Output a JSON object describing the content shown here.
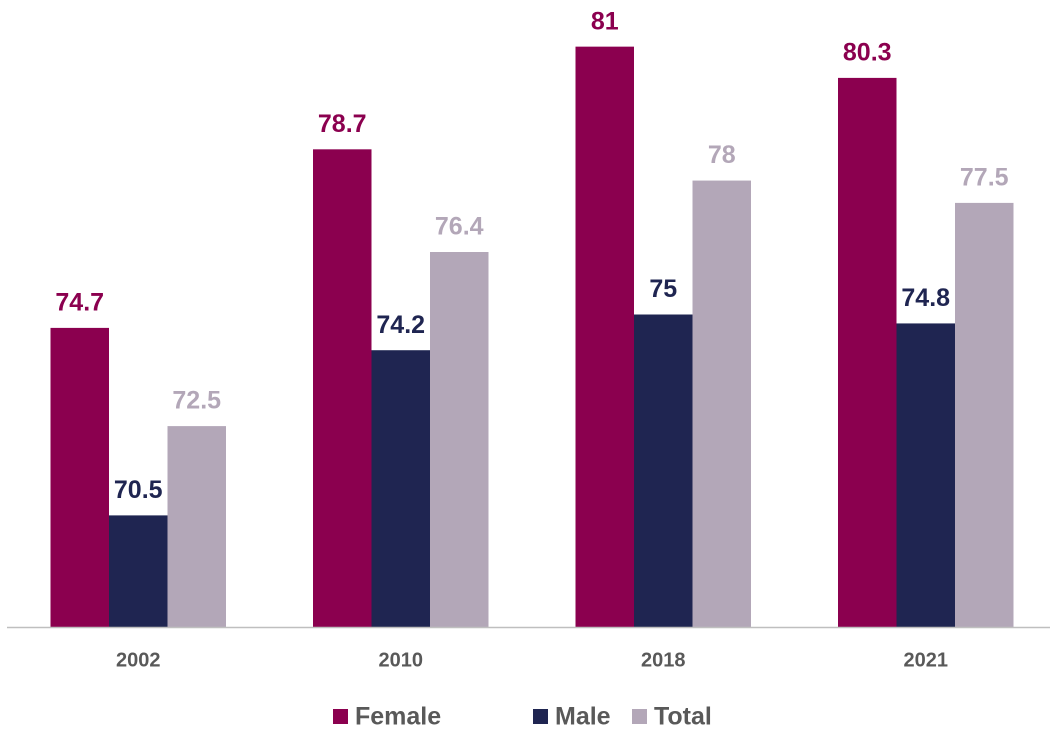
{
  "chart_data": {
    "type": "bar",
    "categories": [
      "2002",
      "2010",
      "2018",
      "2021"
    ],
    "series": [
      {
        "name": "Female",
        "color": "#8b004f",
        "values": [
          74.7,
          78.7,
          81,
          80.3
        ]
      },
      {
        "name": "Male",
        "color": "#1f2551",
        "values": [
          70.5,
          74.2,
          75,
          74.8
        ]
      },
      {
        "name": "Total",
        "color": "#b3a7b8",
        "values": [
          72.5,
          76.4,
          78,
          77.5
        ]
      }
    ],
    "ylim": [
      68,
      82
    ],
    "legend": "bottom"
  }
}
